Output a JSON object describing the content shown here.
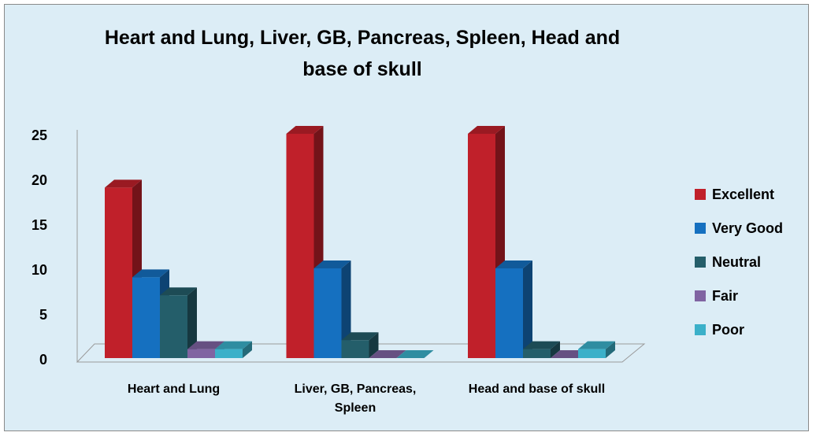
{
  "chart_data": {
    "type": "bar3d",
    "title": "Heart and Lung, Liver, GB, Pancreas, Spleen, Head and base of skull",
    "categories": [
      "Heart and Lung",
      "Liver, GB, Pancreas, Spleen",
      "Head and base of skull"
    ],
    "series": [
      {
        "name": "Excellent",
        "color": "#c0202a",
        "values": [
          19,
          25,
          25
        ]
      },
      {
        "name": "Very Good",
        "color": "#1570c0",
        "values": [
          9,
          10,
          10
        ]
      },
      {
        "name": "Neutral",
        "color": "#245e6a",
        "values": [
          7,
          2,
          1
        ]
      },
      {
        "name": "Fair",
        "color": "#8064a2",
        "values": [
          1,
          0,
          0
        ]
      },
      {
        "name": "Poor",
        "color": "#3bb0c9",
        "values": [
          1,
          0,
          1
        ]
      }
    ],
    "ylim": [
      0,
      25
    ],
    "yticks": [
      0,
      5,
      10,
      15,
      20,
      25
    ],
    "grid": false,
    "legend": "right"
  }
}
